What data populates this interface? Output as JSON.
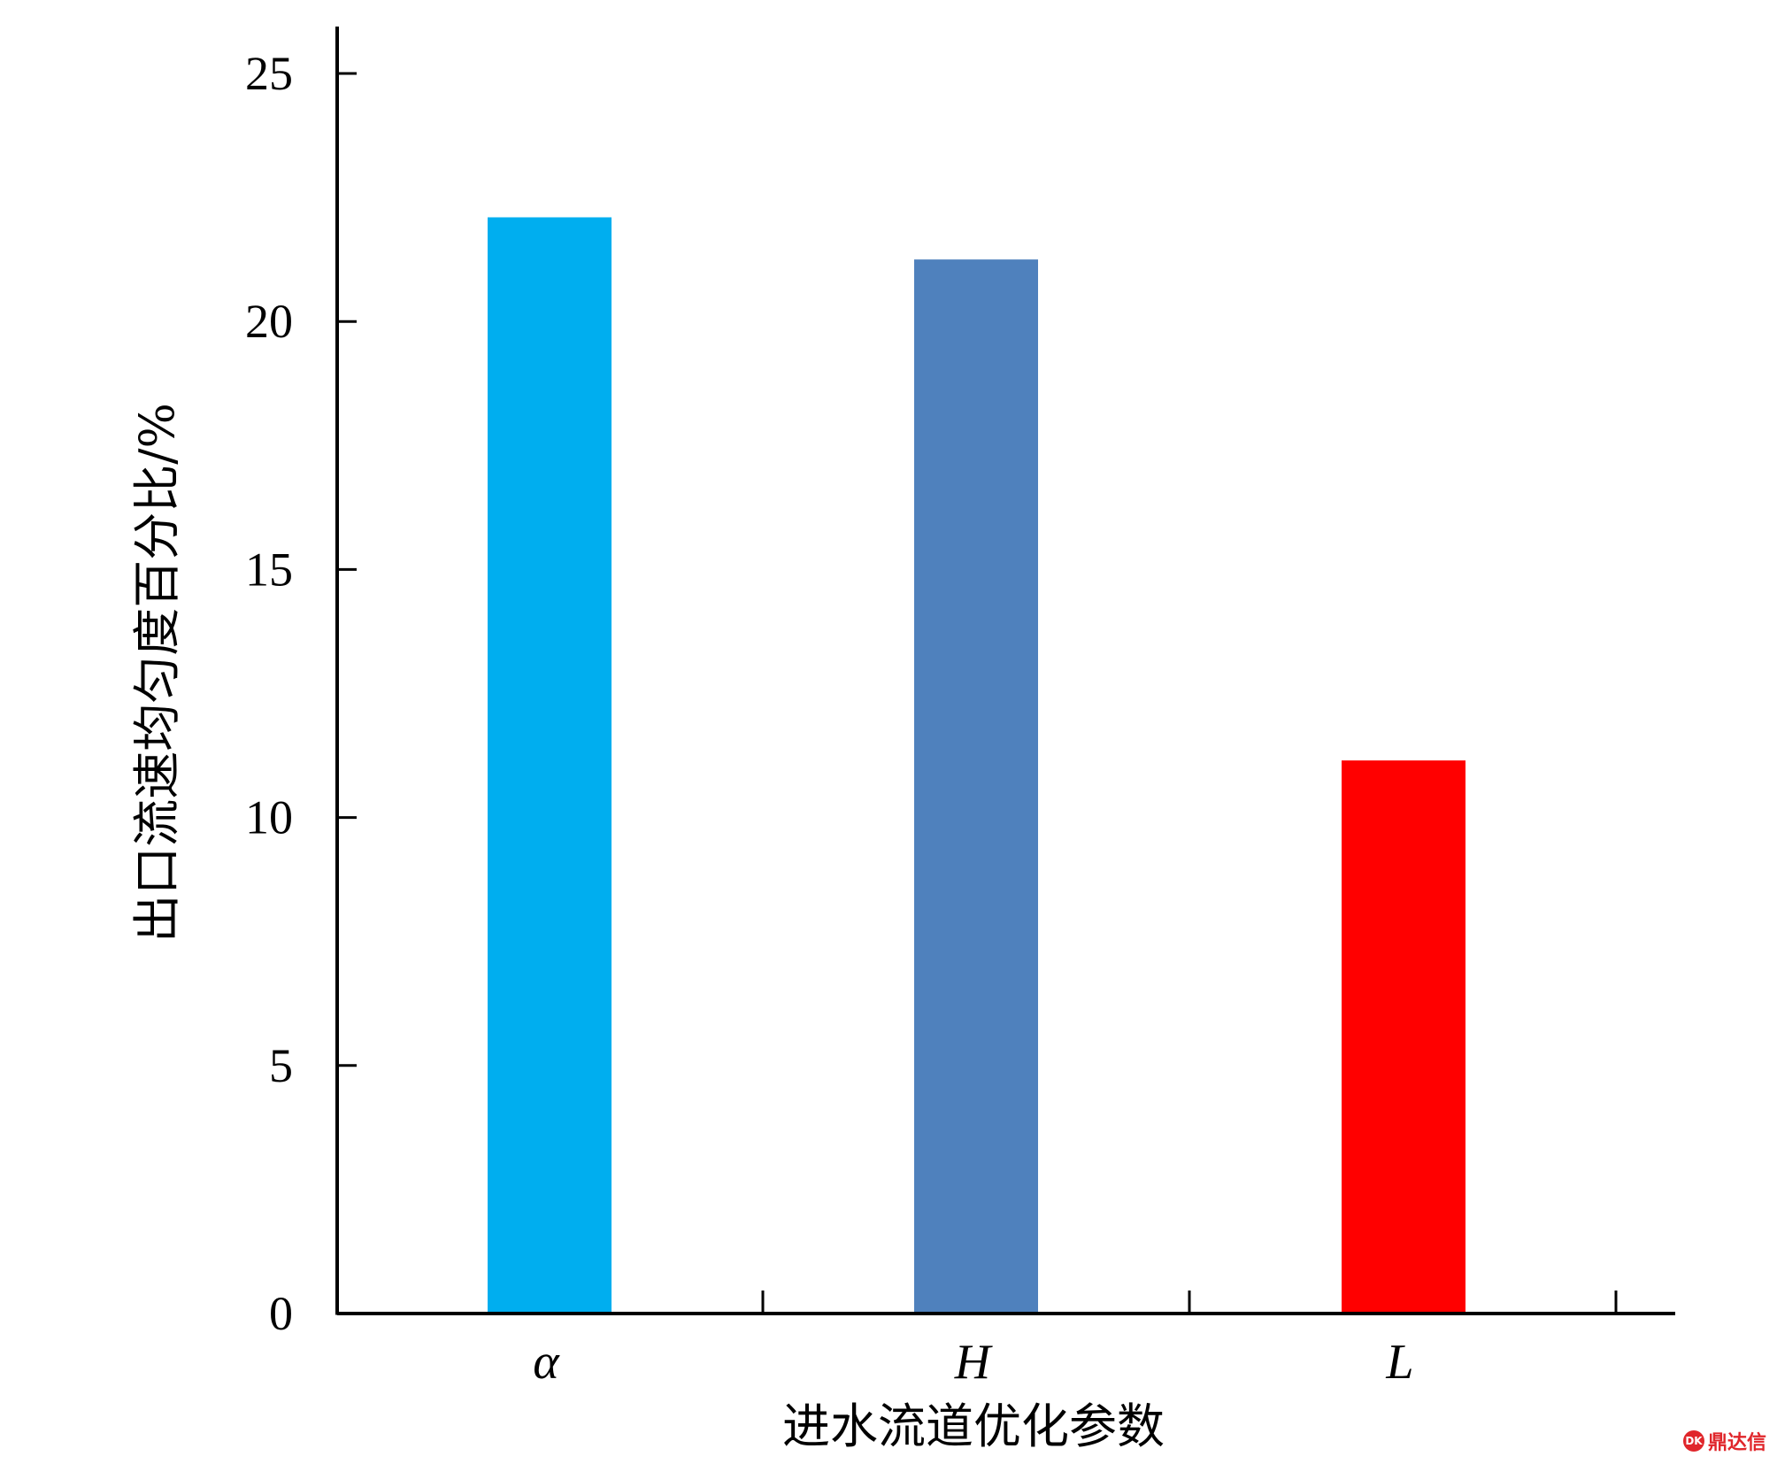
{
  "chart_data": {
    "type": "bar",
    "title": "",
    "xlabel": "进水流道优化参数",
    "ylabel": "出口流速均匀度百分比/%",
    "categories": [
      "α",
      "H",
      "L"
    ],
    "values": [
      22.1,
      21.25,
      11.15
    ],
    "colors": [
      "#00aeef",
      "#4f81bd",
      "#ff0000"
    ],
    "ylim": [
      0,
      25
    ],
    "yticks": [
      0,
      5,
      10,
      15,
      20,
      25
    ],
    "grid": false,
    "legend": "none"
  },
  "watermark": {
    "text": "鼎达信",
    "logo": "DK"
  }
}
